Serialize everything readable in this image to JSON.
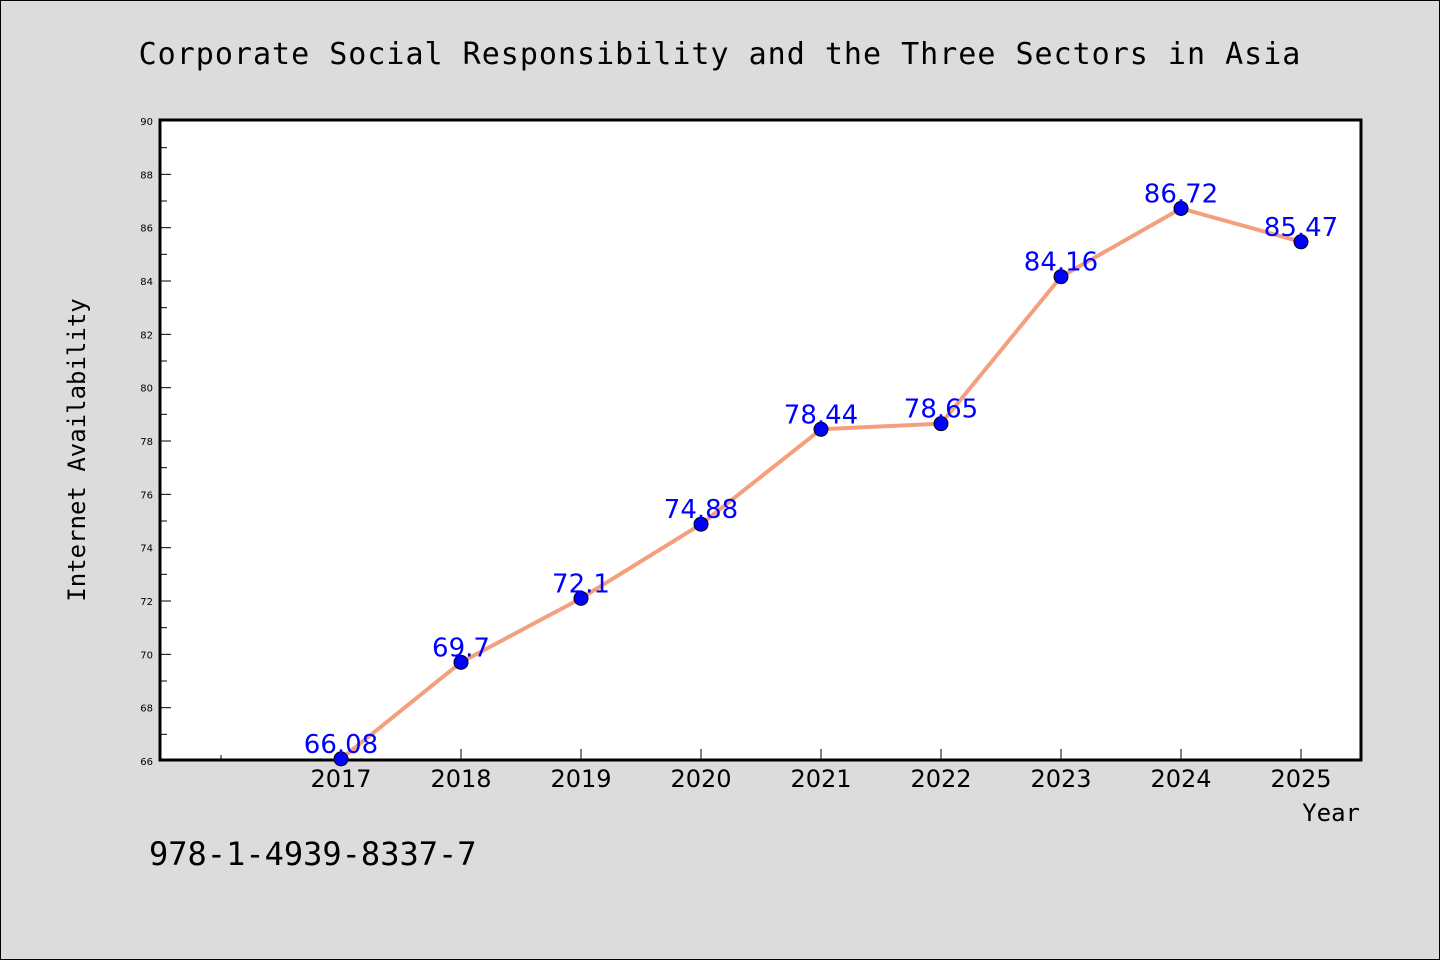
{
  "chart_data": {
    "type": "line",
    "title": "Corporate Social Responsibility and the Three Sectors in Asia",
    "xlabel": "Year",
    "ylabel": "Internet Availability",
    "categories": [
      "2017",
      "2018",
      "2019",
      "2020",
      "2021",
      "2022",
      "2023",
      "2024",
      "2025"
    ],
    "series": [
      {
        "values": [
          66.08,
          69.7,
          72.1,
          74.88,
          78.44,
          78.65,
          84.16,
          86.72,
          85.47
        ]
      }
    ],
    "data_labels": [
      "66.08",
      "69.7",
      "72.1",
      "74.88",
      "78.44",
      "78.65",
      "84.16",
      "86.72",
      "85.47"
    ],
    "ylim": [
      66,
      90
    ],
    "yticks": [
      66,
      68,
      70,
      72,
      74,
      76,
      78,
      80,
      82,
      84,
      86,
      88,
      90
    ],
    "grid": false,
    "colors": {
      "line": "#f4a07e",
      "marker": "#0000ff",
      "label": "#0000ff"
    }
  },
  "footer": {
    "isbn": "978-1-4939-8337-7"
  }
}
